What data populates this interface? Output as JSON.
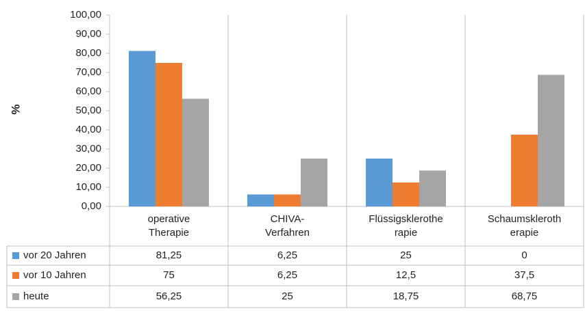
{
  "chart_data": {
    "type": "bar",
    "ylabel": "%",
    "categories": [
      "operative\nTherapie",
      "CHIVA-\nVerfahren",
      "Flüssigsklerothe\nrapie",
      "Schaumskleroth\nerapie"
    ],
    "series": [
      {
        "name": "vor 20 Jahren",
        "color": "#5b9bd5",
        "values": [
          81.25,
          6.25,
          25,
          0
        ],
        "value_labels": [
          "81,25",
          "6,25",
          "25",
          "0"
        ]
      },
      {
        "name": "vor 10 Jahren",
        "color": "#ed7d31",
        "values": [
          75,
          6.25,
          12.5,
          37.5
        ],
        "value_labels": [
          "75",
          "6,25",
          "12,5",
          "37,5"
        ]
      },
      {
        "name": "heute",
        "color": "#a5a5a5",
        "values": [
          56.25,
          25,
          18.75,
          68.75
        ],
        "value_labels": [
          "56,25",
          "25",
          "18,75",
          "68,75"
        ]
      }
    ],
    "ylim": [
      0,
      100
    ],
    "yticks": [
      {
        "value": 0,
        "label": "0,00"
      },
      {
        "value": 10,
        "label": "10,00"
      },
      {
        "value": 20,
        "label": "20,00"
      },
      {
        "value": 30,
        "label": "30,00"
      },
      {
        "value": 40,
        "label": "40,00"
      },
      {
        "value": 50,
        "label": "50,00"
      },
      {
        "value": 60,
        "label": "60,00"
      },
      {
        "value": 70,
        "label": "70,00"
      },
      {
        "value": 80,
        "label": "80,00"
      },
      {
        "value": 90,
        "label": "90,00"
      },
      {
        "value": 100,
        "label": "100,00"
      }
    ],
    "grid": false
  }
}
